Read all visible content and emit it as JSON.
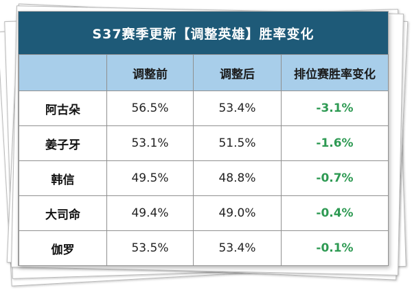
{
  "title": "S37赛季更新【调整英雄】胜率变化",
  "colors": {
    "title_bg": "#1e5a78",
    "header_bg": "#a8ceea",
    "change_text": "#2e9a53"
  },
  "table": {
    "headers": [
      "",
      "调整前",
      "调整后",
      "排位赛胜率变化"
    ],
    "rows": [
      {
        "hero": "阿古朵",
        "before": "56.5%",
        "after": "53.4%",
        "change": "-3.1%"
      },
      {
        "hero": "姜子牙",
        "before": "53.1%",
        "after": "51.5%",
        "change": "-1.6%"
      },
      {
        "hero": "韩信",
        "before": "49.5%",
        "after": "48.8%",
        "change": "-0.7%"
      },
      {
        "hero": "大司命",
        "before": "49.4%",
        "after": "49.0%",
        "change": "-0.4%"
      },
      {
        "hero": "伽罗",
        "before": "53.5%",
        "after": "53.4%",
        "change": "-0.1%"
      }
    ]
  }
}
